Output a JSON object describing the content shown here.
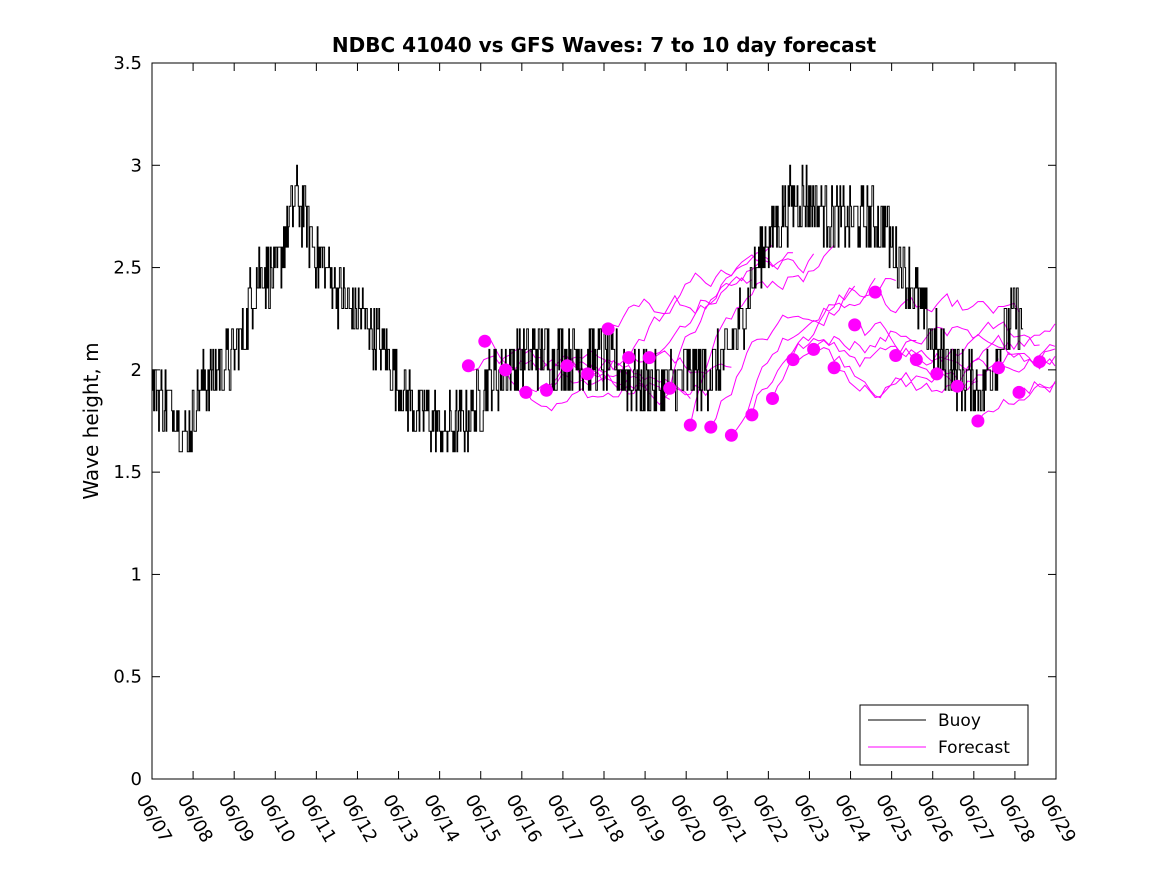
{
  "chart_data": {
    "type": "line",
    "title": "NDBC 41040 vs GFS Waves: 7 to 10 day forecast",
    "xlabel": "",
    "ylabel": "Wave height, m",
    "xlim": [
      "06/07",
      "06/29"
    ],
    "ylim": [
      0,
      3.5
    ],
    "x_tick_labels": [
      "06/07",
      "06/08",
      "06/09",
      "06/10",
      "06/11",
      "06/12",
      "06/13",
      "06/14",
      "06/15",
      "06/16",
      "06/17",
      "06/18",
      "06/19",
      "06/20",
      "06/21",
      "06/22",
      "06/23",
      "06/24",
      "06/25",
      "06/26",
      "06/27",
      "06/28",
      "06/29"
    ],
    "y_tick_values": [
      0,
      0.5,
      1,
      1.5,
      2,
      2.5,
      3,
      3.5
    ],
    "y_tick_labels": [
      "0",
      "0.5",
      "1",
      "1.5",
      "2",
      "2.5",
      "3",
      "3.5"
    ],
    "grid": false,
    "legend_position": "bottom-right",
    "colors": {
      "buoy": "#000000",
      "forecast": "#ff00ff"
    },
    "series": [
      {
        "name": "Buoy",
        "style": "line",
        "anchor_points": [
          {
            "t": 0.0,
            "y": 1.9
          },
          {
            "t": 0.3,
            "y": 1.85
          },
          {
            "t": 0.6,
            "y": 1.8
          },
          {
            "t": 0.8,
            "y": 1.65
          },
          {
            "t": 1.0,
            "y": 1.8
          },
          {
            "t": 1.3,
            "y": 1.95
          },
          {
            "t": 1.6,
            "y": 2.0
          },
          {
            "t": 2.0,
            "y": 2.05
          },
          {
            "t": 2.3,
            "y": 2.25
          },
          {
            "t": 2.6,
            "y": 2.5
          },
          {
            "t": 3.0,
            "y": 2.45
          },
          {
            "t": 3.3,
            "y": 2.7
          },
          {
            "t": 3.5,
            "y": 2.85
          },
          {
            "t": 3.7,
            "y": 2.75
          },
          {
            "t": 4.0,
            "y": 2.55
          },
          {
            "t": 4.4,
            "y": 2.45
          },
          {
            "t": 4.8,
            "y": 2.3
          },
          {
            "t": 5.2,
            "y": 2.25
          },
          {
            "t": 5.6,
            "y": 2.1
          },
          {
            "t": 6.0,
            "y": 1.95
          },
          {
            "t": 6.4,
            "y": 1.8
          },
          {
            "t": 6.8,
            "y": 1.75
          },
          {
            "t": 7.1,
            "y": 1.7
          },
          {
            "t": 7.5,
            "y": 1.72
          },
          {
            "t": 7.9,
            "y": 1.82
          },
          {
            "t": 8.2,
            "y": 1.95
          },
          {
            "t": 8.6,
            "y": 2.0
          },
          {
            "t": 9.0,
            "y": 2.05
          },
          {
            "t": 9.4,
            "y": 2.1
          },
          {
            "t": 9.8,
            "y": 2.05
          },
          {
            "t": 10.2,
            "y": 2.08
          },
          {
            "t": 10.6,
            "y": 2.05
          },
          {
            "t": 11.0,
            "y": 2.05
          },
          {
            "t": 11.4,
            "y": 2.0
          },
          {
            "t": 11.8,
            "y": 1.95
          },
          {
            "t": 12.2,
            "y": 1.92
          },
          {
            "t": 12.6,
            "y": 1.93
          },
          {
            "t": 13.0,
            "y": 1.97
          },
          {
            "t": 13.4,
            "y": 1.98
          },
          {
            "t": 13.8,
            "y": 2.0
          },
          {
            "t": 14.2,
            "y": 2.15
          },
          {
            "t": 14.6,
            "y": 2.45
          },
          {
            "t": 15.0,
            "y": 2.65
          },
          {
            "t": 15.4,
            "y": 2.8
          },
          {
            "t": 15.8,
            "y": 2.85
          },
          {
            "t": 16.2,
            "y": 2.8
          },
          {
            "t": 16.6,
            "y": 2.75
          },
          {
            "t": 17.0,
            "y": 2.72
          },
          {
            "t": 17.4,
            "y": 2.75
          },
          {
            "t": 17.8,
            "y": 2.72
          },
          {
            "t": 18.2,
            "y": 2.55
          },
          {
            "t": 18.6,
            "y": 2.35
          },
          {
            "t": 18.9,
            "y": 2.2
          },
          {
            "t": 19.2,
            "y": 2.05
          },
          {
            "t": 19.6,
            "y": 2.0
          },
          {
            "t": 20.0,
            "y": 1.9
          },
          {
            "t": 20.2,
            "y": 1.9
          },
          {
            "t": 20.5,
            "y": 2.05
          },
          {
            "t": 20.8,
            "y": 2.2
          },
          {
            "t": 21.0,
            "y": 2.3
          },
          {
            "t": 21.2,
            "y": 2.2
          }
        ]
      },
      {
        "name": "Forecast",
        "style": "lines+markers",
        "markers": [
          {
            "t": 7.7,
            "y": 2.02
          },
          {
            "t": 8.1,
            "y": 2.14
          },
          {
            "t": 8.6,
            "y": 2.0
          },
          {
            "t": 9.1,
            "y": 1.89
          },
          {
            "t": 9.6,
            "y": 1.9
          },
          {
            "t": 10.1,
            "y": 2.02
          },
          {
            "t": 10.6,
            "y": 1.98
          },
          {
            "t": 11.1,
            "y": 2.2
          },
          {
            "t": 11.6,
            "y": 2.06
          },
          {
            "t": 12.1,
            "y": 2.06
          },
          {
            "t": 12.6,
            "y": 1.91
          },
          {
            "t": 13.1,
            "y": 1.73
          },
          {
            "t": 13.6,
            "y": 1.72
          },
          {
            "t": 14.1,
            "y": 1.68
          },
          {
            "t": 14.6,
            "y": 1.78
          },
          {
            "t": 15.1,
            "y": 1.86
          },
          {
            "t": 15.6,
            "y": 2.05
          },
          {
            "t": 16.1,
            "y": 2.1
          },
          {
            "t": 16.6,
            "y": 2.01
          },
          {
            "t": 17.1,
            "y": 2.22
          },
          {
            "t": 17.6,
            "y": 2.38
          },
          {
            "t": 18.1,
            "y": 2.07
          },
          {
            "t": 18.6,
            "y": 2.05
          },
          {
            "t": 19.1,
            "y": 1.98
          },
          {
            "t": 19.6,
            "y": 1.92
          },
          {
            "t": 20.1,
            "y": 1.75
          },
          {
            "t": 20.6,
            "y": 2.01
          },
          {
            "t": 21.1,
            "y": 1.89
          },
          {
            "t": 21.6,
            "y": 2.04
          }
        ]
      }
    ]
  },
  "legend": {
    "items": [
      {
        "label": "Buoy"
      },
      {
        "label": "Forecast"
      }
    ]
  }
}
